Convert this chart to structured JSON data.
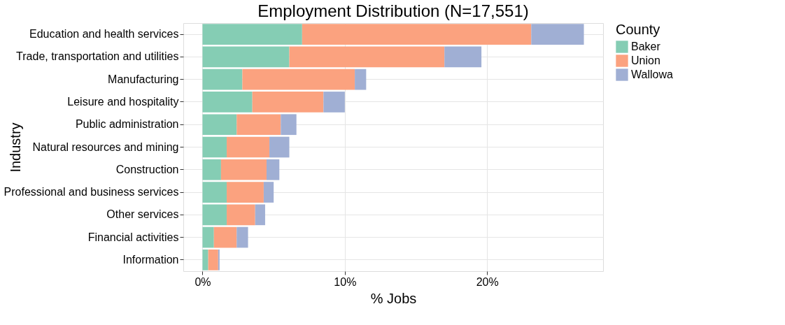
{
  "chart_data": {
    "type": "bar",
    "orientation": "horizontal",
    "stacked": true,
    "title": "Employment Distribution (N=17,551)",
    "xlabel": "% Jobs",
    "ylabel": "Industry",
    "legend_title": "County",
    "categories": [
      "Education and health services",
      "Trade, transportation and utilities",
      "Manufacturing",
      "Leisure and hospitality",
      "Public administration",
      "Natural resources and mining",
      "Construction",
      "Professional and business services",
      "Other services",
      "Financial activities",
      "Information"
    ],
    "series": [
      {
        "name": "Baker",
        "color": "#85cdb4",
        "values": [
          7.0,
          6.1,
          2.8,
          3.5,
          2.4,
          1.7,
          1.3,
          1.7,
          1.7,
          0.8,
          0.4
        ]
      },
      {
        "name": "Union",
        "color": "#fba27f",
        "values": [
          16.1,
          10.9,
          7.9,
          5.0,
          3.1,
          3.0,
          3.2,
          2.6,
          2.0,
          1.6,
          0.7
        ]
      },
      {
        "name": "Wallowa",
        "color": "#a0afd4",
        "values": [
          3.7,
          2.6,
          0.8,
          1.5,
          1.1,
          1.4,
          0.9,
          0.7,
          0.7,
          0.8,
          0.1
        ]
      }
    ],
    "xlim": [
      -1.35,
      28.15
    ],
    "xticks": [
      {
        "value": 0,
        "label": "0%"
      },
      {
        "value": 10,
        "label": "10%"
      },
      {
        "value": 20,
        "label": "20%"
      }
    ],
    "grid": true,
    "legend": "right"
  }
}
